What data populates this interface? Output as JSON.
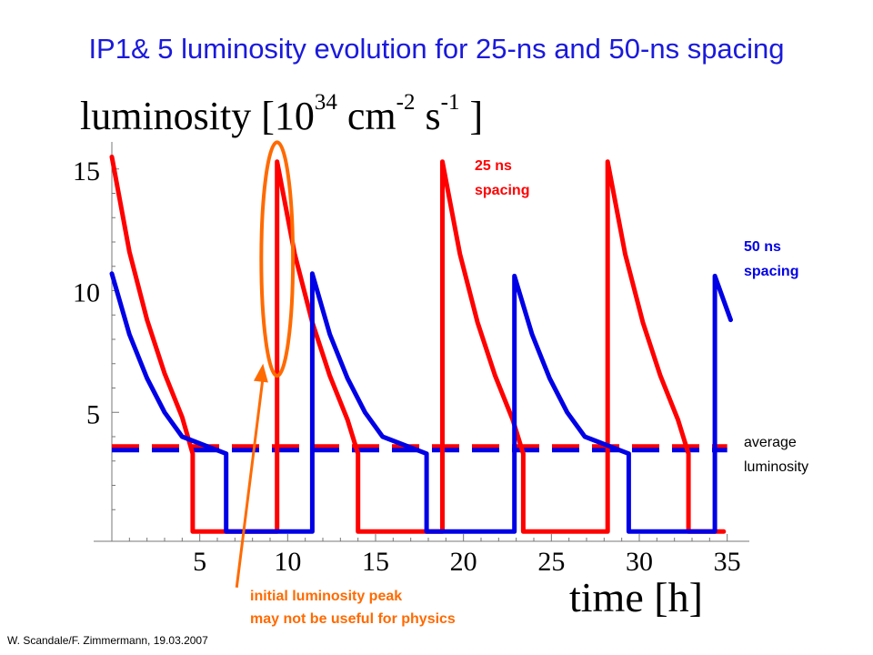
{
  "title": "IP1& 5 luminosity evolution for 25-ns and 50-ns spacing",
  "credit": "W. Scandale/F. Zimmermann, 19.03.2007",
  "colors": {
    "title": "#1a1adc",
    "red": "#ff0000",
    "blue": "#0000e6",
    "highlight": "#ff6a00"
  },
  "chart_data": {
    "type": "line",
    "ylabel": {
      "base": "luminosity [10",
      "exp1": "34",
      "mid1": " cm",
      "exp2": "-2",
      "mid2": " s",
      "exp3": "-1",
      "end": " ]"
    },
    "xlabel": "time [h]",
    "xlim": [
      0,
      36
    ],
    "ylim": [
      0,
      16
    ],
    "xticks": [
      5,
      10,
      15,
      20,
      25,
      30,
      35
    ],
    "xtick_labels": [
      "5",
      "10",
      "15",
      "20",
      "25",
      "30",
      "35"
    ],
    "yticks": [
      5,
      10,
      15
    ],
    "ytick_labels": [
      "5",
      "10",
      "15"
    ],
    "series": [
      {
        "name": "25 ns spacing",
        "color": "#ff0000",
        "points": [
          [
            0,
            15.5
          ],
          [
            1,
            11.6
          ],
          [
            2,
            8.8
          ],
          [
            3,
            6.6
          ],
          [
            4,
            4.8
          ],
          [
            4.6,
            3.3
          ],
          [
            4.6,
            0.1
          ],
          [
            9.4,
            0.1
          ],
          [
            9.4,
            15.3
          ],
          [
            10.4,
            11.5
          ],
          [
            11.4,
            8.7
          ],
          [
            12.4,
            6.5
          ],
          [
            13.4,
            4.7
          ],
          [
            14.0,
            3.3
          ],
          [
            14.0,
            0.1
          ],
          [
            18.8,
            0.1
          ],
          [
            18.8,
            15.3
          ],
          [
            19.8,
            11.5
          ],
          [
            20.8,
            8.7
          ],
          [
            21.8,
            6.5
          ],
          [
            22.8,
            4.7
          ],
          [
            23.4,
            3.3
          ],
          [
            23.4,
            0.1
          ],
          [
            28.2,
            0.1
          ],
          [
            28.2,
            15.3
          ],
          [
            29.2,
            11.5
          ],
          [
            30.2,
            8.7
          ],
          [
            31.2,
            6.5
          ],
          [
            32.2,
            4.7
          ],
          [
            32.8,
            3.3
          ],
          [
            32.8,
            0.1
          ],
          [
            34.8,
            0.1
          ]
        ]
      },
      {
        "name": "50 ns spacing",
        "color": "#0000e6",
        "points": [
          [
            0,
            10.7
          ],
          [
            1,
            8.2
          ],
          [
            2,
            6.4
          ],
          [
            3,
            5.0
          ],
          [
            4,
            4.0
          ],
          [
            6.5,
            3.3
          ],
          [
            6.5,
            0.1
          ],
          [
            11.4,
            0.1
          ],
          [
            11.4,
            10.7
          ],
          [
            12.4,
            8.2
          ],
          [
            13.4,
            6.4
          ],
          [
            14.4,
            5.0
          ],
          [
            15.4,
            4.0
          ],
          [
            17.9,
            3.3
          ],
          [
            17.9,
            0.1
          ],
          [
            22.9,
            0.1
          ],
          [
            22.9,
            10.6
          ],
          [
            23.9,
            8.2
          ],
          [
            24.9,
            6.4
          ],
          [
            25.9,
            5.0
          ],
          [
            26.9,
            4.0
          ],
          [
            29.4,
            3.3
          ],
          [
            29.4,
            0.1
          ],
          [
            34.3,
            0.1
          ],
          [
            34.3,
            10.6
          ],
          [
            35.2,
            8.8
          ]
        ]
      }
    ],
    "average_luminosity": [
      {
        "color": "#ff0000",
        "y": 3.6
      },
      {
        "color": "#0000e6",
        "y": 3.45
      }
    ],
    "annotations": {
      "label_25ns": [
        "25 ns",
        "spacing"
      ],
      "label_50ns": [
        "50 ns",
        "spacing"
      ],
      "label_avg": [
        "average",
        "luminosity"
      ],
      "label_peak": [
        "initial luminosity peak",
        "may not be useful for physics"
      ]
    },
    "highlight": {
      "x": 9.4,
      "y": 11.3,
      "rx": 0.9,
      "ry": 4.8
    },
    "arrow": {
      "from": [
        7.1,
        -2.2
      ],
      "to": [
        8.6,
        7.0
      ]
    },
    "grid": false
  }
}
